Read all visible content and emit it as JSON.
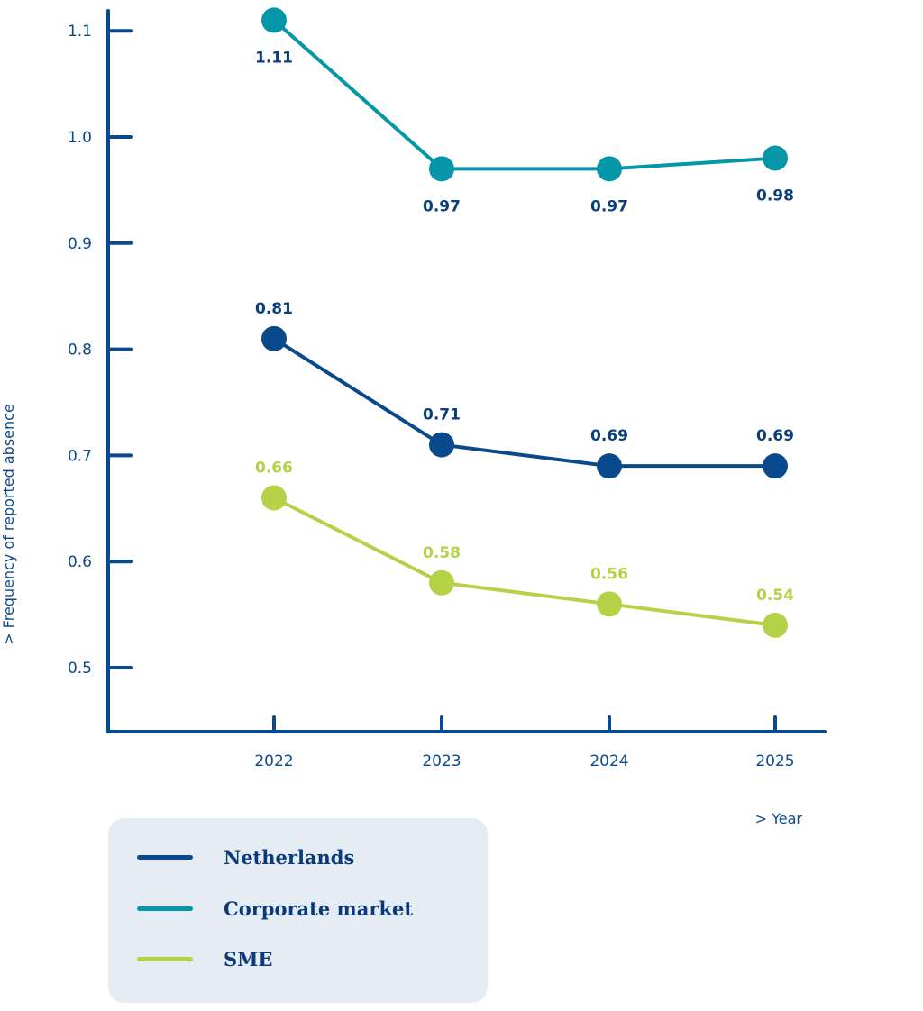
{
  "chart_data": {
    "type": "line",
    "title": "",
    "xlabel": "> Year",
    "ylabel": "> Frequency of reported absence",
    "x": [
      "2022",
      "2023",
      "2024",
      "2025"
    ],
    "yticks": [
      "0.5",
      "0.6",
      "0.7",
      "0.8",
      "0.9",
      "1.0",
      "1.1"
    ],
    "ylim": [
      0.5,
      1.1
    ],
    "grid": false,
    "legend_position": "bottom-left",
    "series": [
      {
        "name": "Netherlands",
        "values": [
          0.81,
          0.71,
          0.69,
          0.69
        ],
        "labels": [
          "0.81",
          "0.71",
          "0.69",
          "0.69"
        ],
        "color": "#0a4a8c",
        "label_placement": "above"
      },
      {
        "name": "Corporate market",
        "values": [
          1.11,
          0.97,
          0.97,
          0.98
        ],
        "labels": [
          "1.11",
          "0.97",
          "0.97",
          "0.98"
        ],
        "color": "#0596a8",
        "label_placement": "below"
      },
      {
        "name": "SME",
        "values": [
          0.66,
          0.58,
          0.56,
          0.54
        ],
        "labels": [
          "0.66",
          "0.58",
          "0.56",
          "0.54"
        ],
        "color": "#b5d147",
        "label_placement": "above"
      }
    ]
  }
}
